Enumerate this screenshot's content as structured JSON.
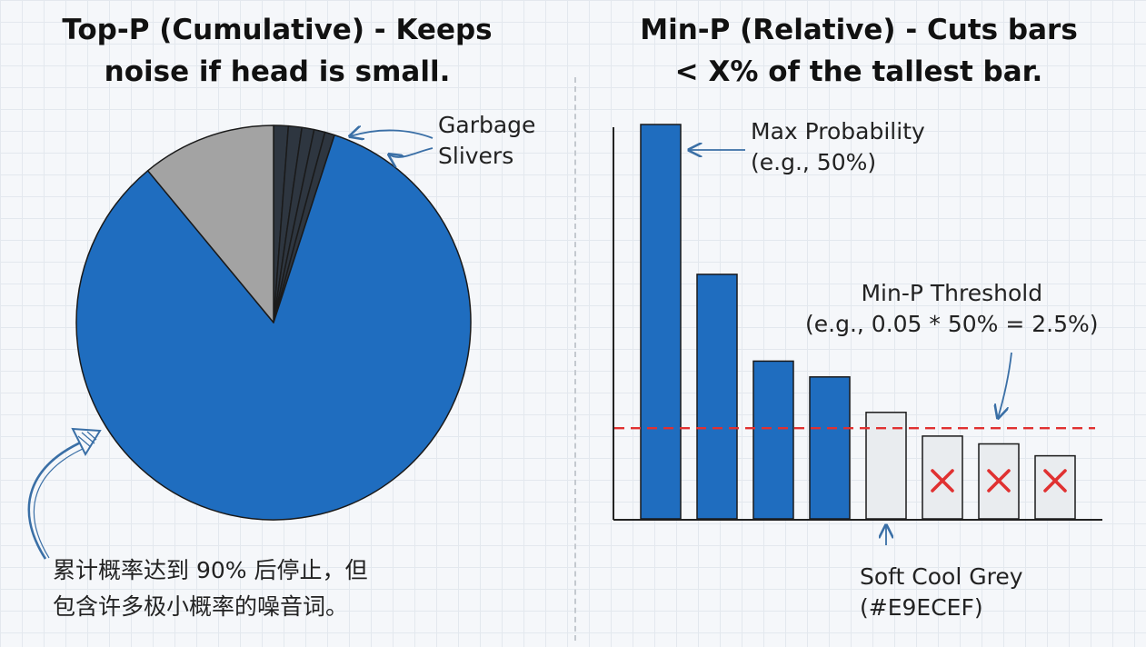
{
  "left_panel": {
    "title_line1": "Top-P (Cumulative) - Keeps",
    "title_line2": "noise if head is small.",
    "pie_annotation_line1": "Garbage",
    "pie_annotation_line2": "Slivers",
    "note_line1": "累计概率达到 90% 后停止，但",
    "note_line2": "包含许多极小概率的噪音词。"
  },
  "right_panel": {
    "title_line1": "Min-P (Relative) - Cuts bars",
    "title_line2": "< X% of the tallest bar.",
    "max_label_line1": "Max Probability",
    "max_label_line2": "(e.g., 50%)",
    "threshold_label_line1": "Min-P Threshold",
    "threshold_label_line2": "(e.g., 0.05 * 50% = 2.5%)",
    "grey_label_line1": "Soft Cool Grey",
    "grey_label_line2": "(#E9ECEF)"
  },
  "colors": {
    "kept_blue": "#1f6dbf",
    "cut_grey": "#e9ecef",
    "medium_grey": "#a3a3a3",
    "dark_sliver": "#2e3640",
    "threshold_red": "#e03131",
    "cross_red": "#e03131"
  },
  "icons": [
    "curved-arrow-icon",
    "cross-icon",
    "arrow-icon"
  ],
  "chart_data": [
    {
      "type": "pie",
      "slices": [
        {
          "value": 0.84,
          "color": "#1f6dbf",
          "kind": "head"
        },
        {
          "value": 0.11,
          "color": "#a3a3a3",
          "kind": "mid"
        },
        {
          "value": 0.012,
          "color": "#2e3640",
          "kind": "sliver"
        },
        {
          "value": 0.011,
          "color": "#2e3640",
          "kind": "sliver"
        },
        {
          "value": 0.01,
          "color": "#2e3640",
          "kind": "sliver"
        },
        {
          "value": 0.009,
          "color": "#2e3640",
          "kind": "sliver"
        },
        {
          "value": 0.008,
          "color": "#2e3640",
          "kind": "sliver"
        }
      ]
    },
    {
      "type": "bar",
      "values": [
        100,
        62,
        40,
        36,
        27,
        21,
        19,
        16
      ],
      "kept": [
        true,
        true,
        true,
        true,
        false,
        false,
        false,
        false
      ],
      "cut_marked": [
        false,
        false,
        false,
        false,
        false,
        true,
        true,
        true
      ],
      "threshold": 23,
      "ylim": [
        0,
        100
      ]
    }
  ]
}
